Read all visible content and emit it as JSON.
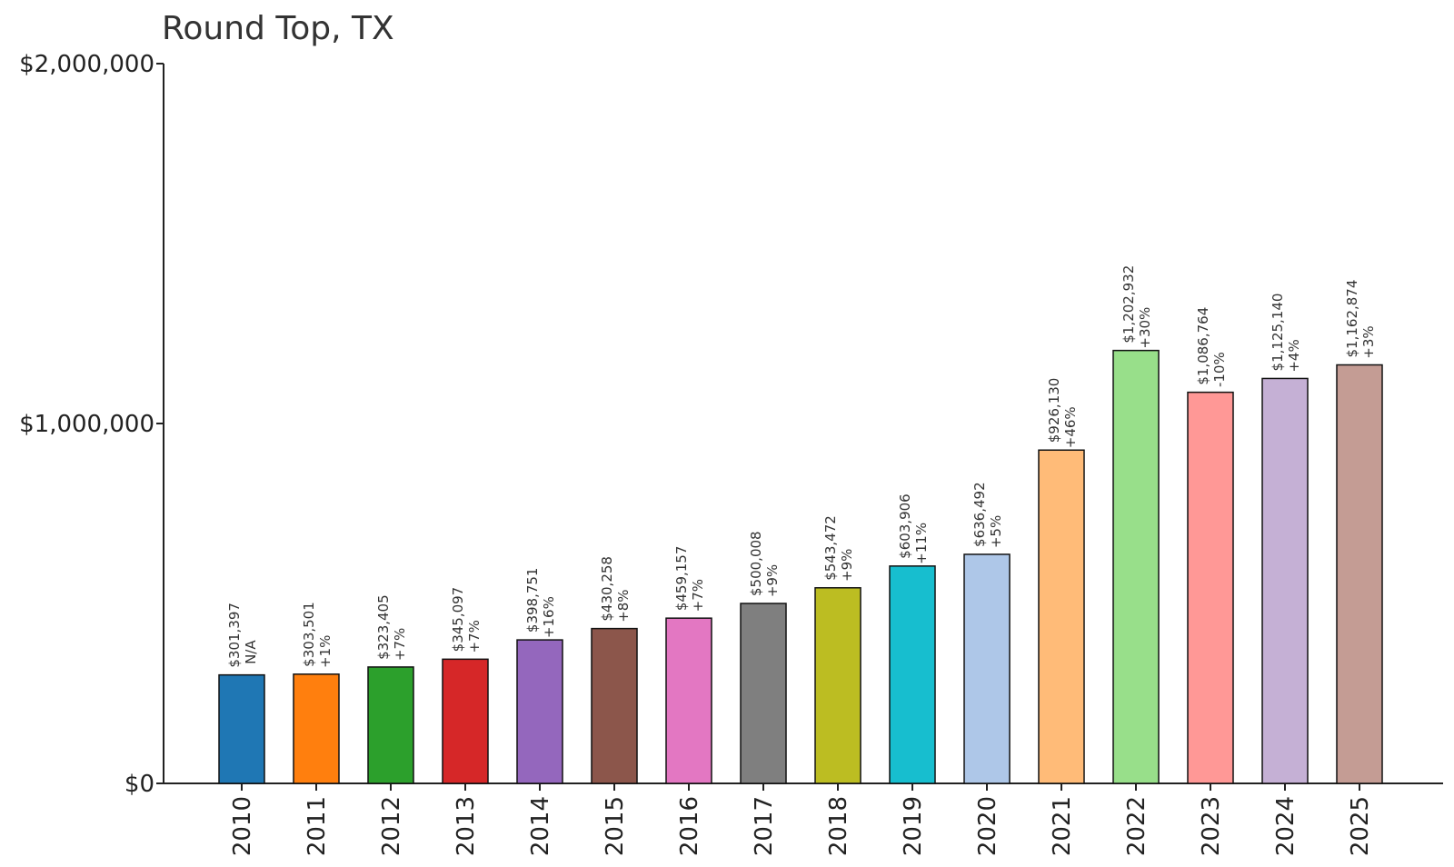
{
  "chart_data": {
    "type": "bar",
    "title": "Round Top, TX",
    "xlabel": "",
    "ylabel": "",
    "ylim": [
      0,
      2000000
    ],
    "yticks": [
      {
        "value": 0,
        "label": "$0"
      },
      {
        "value": 1000000,
        "label": "$1,000,000"
      },
      {
        "value": 2000000,
        "label": "$2,000,000"
      }
    ],
    "grid": false,
    "legend": "none",
    "categories": [
      "2010",
      "2011",
      "2012",
      "2013",
      "2014",
      "2015",
      "2016",
      "2017",
      "2018",
      "2019",
      "2020",
      "2021",
      "2022",
      "2023",
      "2024",
      "2025"
    ],
    "values": [
      301397,
      303501,
      323405,
      345097,
      398751,
      430258,
      459157,
      500008,
      543472,
      603906,
      636492,
      926130,
      1202932,
      1086764,
      1125140,
      1162874
    ],
    "value_labels": [
      "$301,397",
      "$303,501",
      "$323,405",
      "$345,097",
      "$398,751",
      "$430,258",
      "$459,157",
      "$500,008",
      "$543,472",
      "$603,906",
      "$636,492",
      "$926,130",
      "$1,202,932",
      "$1,086,764",
      "$1,125,140",
      "$1,162,874"
    ],
    "change_labels": [
      "N/A",
      "+1%",
      "+7%",
      "+7%",
      "+16%",
      "+8%",
      "+7%",
      "+9%",
      "+9%",
      "+11%",
      "+5%",
      "+46%",
      "+30%",
      "-10%",
      "+4%",
      "+3%"
    ],
    "colors": [
      "#1f77b4",
      "#ff7f0e",
      "#2ca02c",
      "#d62728",
      "#9467bd",
      "#8c564b",
      "#e377c2",
      "#7f7f7f",
      "#bcbd22",
      "#17becf",
      "#aec7e8",
      "#ffbb78",
      "#98df8a",
      "#ff9896",
      "#c5b0d5",
      "#c49c94"
    ]
  }
}
